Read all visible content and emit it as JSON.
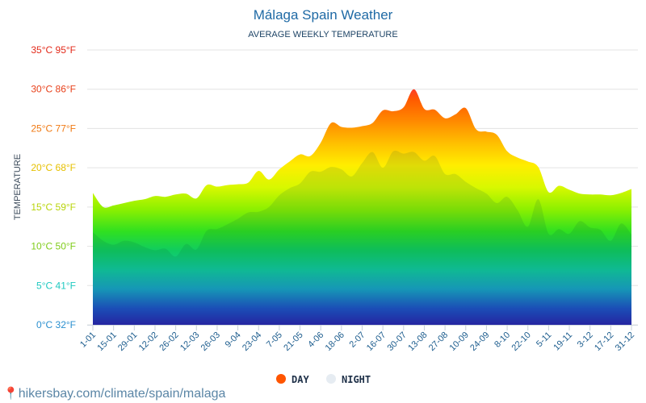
{
  "chart_data": {
    "type": "area",
    "title": "Málaga Spain Weather",
    "subtitle": "AVERAGE WEEKLY TEMPERATURE",
    "xlabel": "",
    "ylabel": "TEMPERATURE",
    "ylim": [
      0,
      35
    ],
    "grid": true,
    "legend_position": "bottom-center",
    "y_ticks": [
      {
        "value": 0,
        "label": "0°C 32°F",
        "color": "#2a8fcf"
      },
      {
        "value": 5,
        "label": "5°C 41°F",
        "color": "#1fc9c0"
      },
      {
        "value": 10,
        "label": "10°C 50°F",
        "color": "#7fcc1a"
      },
      {
        "value": 15,
        "label": "15°C 59°F",
        "color": "#b8d40a"
      },
      {
        "value": 20,
        "label": "20°C 68°F",
        "color": "#e6c000"
      },
      {
        "value": 25,
        "label": "25°C 77°F",
        "color": "#f07a14"
      },
      {
        "value": 30,
        "label": "30°C 86°F",
        "color": "#e8401a"
      },
      {
        "value": 35,
        "label": "35°C 95°F",
        "color": "#e32a1a"
      }
    ],
    "x_tick_labels": [
      "1-01",
      "15-01",
      "29-01",
      "12-02",
      "26-02",
      "12-03",
      "26-03",
      "9-04",
      "23-04",
      "7-05",
      "21-05",
      "4-06",
      "18-06",
      "2-07",
      "16-07",
      "30-07",
      "13-08",
      "27-08",
      "10-09",
      "24-09",
      "8-10",
      "22-10",
      "5-11",
      "19-11",
      "3-12",
      "17-12",
      "31-12"
    ],
    "series": [
      {
        "name": "DAY",
        "color": "#ff5500",
        "values": [
          16.8,
          15.0,
          15.2,
          15.5,
          15.8,
          16.0,
          16.4,
          16.3,
          16.6,
          16.7,
          16.1,
          17.8,
          17.6,
          17.8,
          17.9,
          18.1,
          19.6,
          18.5,
          19.8,
          20.8,
          21.7,
          21.5,
          23.2,
          25.7,
          25.2,
          25.1,
          25.3,
          25.7,
          27.3,
          27.2,
          27.7,
          30.0,
          27.5,
          27.4,
          26.3,
          26.8,
          27.6,
          24.9,
          24.6,
          24.2,
          22.1,
          21.3,
          20.8,
          20.1,
          16.9,
          17.7,
          17.2,
          16.7,
          16.6,
          16.6,
          16.5,
          16.8,
          17.3
        ]
      },
      {
        "name": "NIGHT",
        "color": "#e6ecf2",
        "values": [
          11.8,
          10.7,
          10.2,
          10.7,
          10.5,
          9.9,
          9.5,
          9.7,
          8.7,
          10.3,
          9.6,
          12.0,
          12.2,
          12.8,
          13.5,
          14.3,
          14.4,
          15.0,
          16.5,
          17.4,
          18.0,
          19.5,
          19.5,
          20.1,
          19.8,
          18.9,
          20.6,
          22.0,
          20.0,
          22.1,
          21.8,
          22.0,
          20.9,
          21.5,
          19.2,
          19.2,
          18.2,
          17.4,
          16.7,
          15.5,
          16.3,
          14.6,
          12.5,
          16.0,
          11.6,
          12.2,
          11.6,
          13.2,
          12.4,
          12.1,
          10.7,
          12.9,
          11.5
        ]
      }
    ]
  },
  "legend": {
    "day_label": "DAY",
    "night_label": "NIGHT"
  },
  "footer": {
    "link_text": "hikersbay.com/climate/spain/malaga"
  }
}
